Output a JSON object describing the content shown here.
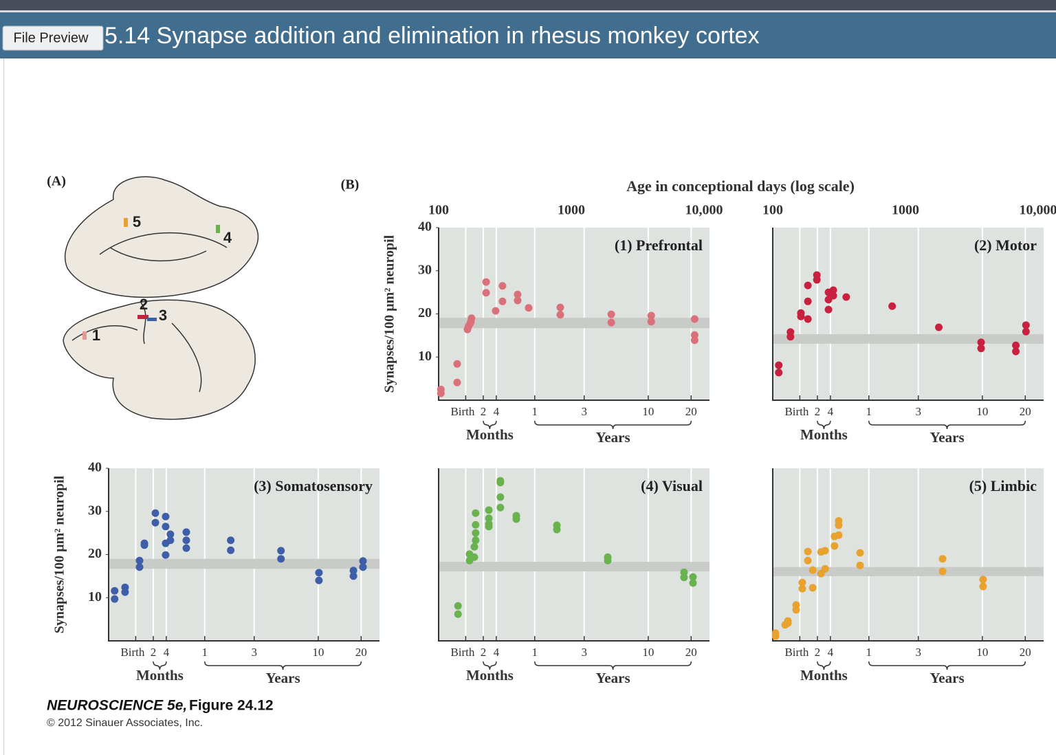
{
  "window": {
    "tab": "File Preview",
    "title": "5.14  Synapse addition and elimination in rhesus monkey cortex"
  },
  "figure": {
    "panel_a": "(A)",
    "panel_b": "(B)",
    "x_title": "Age in conceptional days (log scale)",
    "brain_labels": [
      "1",
      "2",
      "3",
      "4",
      "5"
    ],
    "credit_title": "NEUROSCIENCE 5e,",
    "credit_figure": "Figure 24.12",
    "copyright": "© 2012 Sinauer Associates, Inc."
  },
  "chart_data": [
    {
      "type": "scatter",
      "title": "(1) Prefrontal",
      "ylabel": "Synapses/100 µm² neuropil",
      "color": "#d9707a",
      "log_x": true,
      "xlim": [
        100,
        11000
      ],
      "ylim": [
        0,
        40
      ],
      "xticks": [
        100,
        1000,
        {
          "value": 10000,
          "label": "10,000"
        }
      ],
      "yticks": [
        10,
        20,
        30,
        40
      ],
      "age_ticks": [
        {
          "value": 160,
          "label": "Birth"
        },
        {
          "value": 217,
          "label": "2"
        },
        {
          "value": 272,
          "label": "4"
        },
        {
          "value": 530,
          "label": "1"
        },
        {
          "value": 1250,
          "label": "3"
        },
        {
          "value": 3800,
          "label": "10"
        },
        {
          "value": 8000,
          "label": "20"
        }
      ],
      "age_groups": [
        "Months",
        "Years"
      ],
      "band": [
        16.7,
        19.1
      ],
      "x": [
        104,
        104,
        138,
        138,
        165,
        168,
        173,
        177,
        175,
        228,
        228,
        269,
        303,
        303,
        394,
        394,
        477,
        826,
        826,
        2000,
        2000,
        4000,
        4000,
        8500,
        8500,
        8500
      ],
      "values": [
        2.5,
        1.6,
        8.4,
        4.1,
        16.4,
        17.1,
        17.8,
        19.0,
        18.2,
        27.4,
        24.9,
        20.7,
        26.5,
        22.9,
        24.5,
        23.1,
        21.4,
        21.5,
        19.8,
        19.9,
        18.0,
        19.6,
        18.2,
        18.8,
        15.1,
        13.9
      ]
    },
    {
      "type": "scatter",
      "title": "(2) Motor",
      "color": "#c8203f",
      "log_x": true,
      "xlim": [
        100,
        11000
      ],
      "ylim": [
        0,
        40
      ],
      "xticks": [
        100,
        1000,
        {
          "value": 10000,
          "label": "10,000"
        }
      ],
      "age_ticks": [
        {
          "value": 160,
          "label": "Birth"
        },
        {
          "value": 217,
          "label": "2"
        },
        {
          "value": 272,
          "label": "4"
        },
        {
          "value": 530,
          "label": "1"
        },
        {
          "value": 1250,
          "label": "3"
        },
        {
          "value": 3800,
          "label": "10"
        },
        {
          "value": 8000,
          "label": "20"
        }
      ],
      "age_groups": [
        "Months",
        "Years"
      ],
      "band": [
        13.1,
        15.3
      ],
      "x": [
        111,
        111,
        136,
        136,
        163,
        163,
        184,
        184,
        184,
        215,
        215,
        263,
        263,
        263,
        286,
        286,
        358,
        794,
        1784,
        3717,
        3717,
        6790,
        6790,
        8100,
        8100
      ],
      "values": [
        8.1,
        6.4,
        15.8,
        14.7,
        20.2,
        19.4,
        18.8,
        22.9,
        26.6,
        29.0,
        27.9,
        23.3,
        21.0,
        25.0,
        25.5,
        24.2,
        23.9,
        21.8,
        16.9,
        13.4,
        12.0,
        12.7,
        11.3,
        17.4,
        15.9
      ]
    },
    {
      "type": "scatter",
      "title": "(3) Somatosensory",
      "ylabel": "Synapses/100 µm² neuropil",
      "color": "#3e5ea8",
      "log_x": true,
      "xlim": [
        100,
        11000
      ],
      "ylim": [
        0,
        40
      ],
      "yticks": [
        10,
        20,
        30,
        40
      ],
      "age_ticks": [
        {
          "value": 160,
          "label": "Birth"
        },
        {
          "value": 217,
          "label": "2"
        },
        {
          "value": 272,
          "label": "4"
        },
        {
          "value": 530,
          "label": "1"
        },
        {
          "value": 1250,
          "label": "3"
        },
        {
          "value": 3800,
          "label": "10"
        },
        {
          "value": 8000,
          "label": "20"
        }
      ],
      "age_groups": [
        "Months",
        "Years"
      ],
      "band": [
        16.7,
        19.0
      ],
      "x": [
        111,
        111,
        133,
        133,
        171,
        171,
        186,
        186,
        225,
        225,
        269,
        269,
        269,
        269,
        292,
        292,
        385,
        385,
        385,
        832,
        832,
        1990,
        1990,
        3846,
        3846,
        6997,
        6997,
        8260,
        8260
      ],
      "values": [
        11.6,
        9.7,
        12.4,
        11.3,
        18.6,
        17.1,
        22.6,
        22.2,
        29.6,
        27.4,
        28.8,
        26.5,
        22.6,
        19.9,
        24.7,
        23.3,
        25.2,
        23.3,
        21.5,
        23.3,
        21.0,
        20.9,
        19.0,
        15.8,
        14.0,
        16.3,
        15.0,
        18.5,
        17.1
      ]
    },
    {
      "type": "scatter",
      "title": "(4) Visual",
      "color": "#6ab150",
      "log_x": true,
      "xlim": [
        100,
        11000
      ],
      "ylim": [
        0,
        40
      ],
      "age_ticks": [
        {
          "value": 160,
          "label": "Birth"
        },
        {
          "value": 217,
          "label": "2"
        },
        {
          "value": 272,
          "label": "4"
        },
        {
          "value": 530,
          "label": "1"
        },
        {
          "value": 1250,
          "label": "3"
        },
        {
          "value": 3800,
          "label": "10"
        },
        {
          "value": 8000,
          "label": "20"
        }
      ],
      "age_groups": [
        "Months",
        "Years"
      ],
      "band": [
        16.1,
        18.3
      ],
      "x": [
        140,
        140,
        171,
        171,
        186,
        186,
        190,
        190,
        190,
        190,
        239,
        239,
        239,
        239,
        292,
        292,
        292,
        292,
        385,
        385,
        778,
        778,
        1882,
        1882,
        7070,
        7070,
        8260,
        8260
      ],
      "values": [
        8.1,
        6.2,
        20.1,
        18.6,
        19.4,
        21.8,
        23.3,
        25.0,
        26.9,
        29.6,
        30.3,
        28.4,
        27.1,
        26.5,
        37.1,
        36.7,
        33.3,
        30.9,
        29.0,
        28.2,
        26.8,
        25.8,
        19.4,
        18.6,
        15.9,
        14.7,
        14.8,
        13.4
      ]
    },
    {
      "type": "scatter",
      "title": "(5) Limbic",
      "color": "#e8a230",
      "log_x": true,
      "xlim": [
        100,
        11000
      ],
      "ylim": [
        0,
        40
      ],
      "age_ticks": [
        {
          "value": 160,
          "label": "Birth"
        },
        {
          "value": 217,
          "label": "2"
        },
        {
          "value": 272,
          "label": "4"
        },
        {
          "value": 530,
          "label": "1"
        },
        {
          "value": 1250,
          "label": "3"
        },
        {
          "value": 3800,
          "label": "10"
        },
        {
          "value": 8000,
          "label": "20"
        }
      ],
      "age_groups": [
        "Months",
        "Years"
      ],
      "band": [
        15.0,
        17.1
      ],
      "x": [
        105,
        105,
        124,
        130,
        130,
        150,
        150,
        167,
        167,
        184,
        184,
        200,
        200,
        231,
        231,
        248,
        248,
        292,
        292,
        314,
        314,
        314,
        455,
        455,
        1906,
        1906,
        3846,
        3846
      ],
      "values": [
        1.1,
        1.8,
        3.7,
        4.6,
        4.1,
        8.3,
        7.2,
        13.5,
        12.1,
        20.7,
        18.6,
        16.4,
        12.3,
        15.6,
        20.6,
        20.9,
        16.7,
        22.0,
        24.2,
        27.8,
        26.8,
        24.5,
        20.4,
        17.5,
        19.0,
        16.1,
        14.2,
        12.6
      ]
    }
  ]
}
